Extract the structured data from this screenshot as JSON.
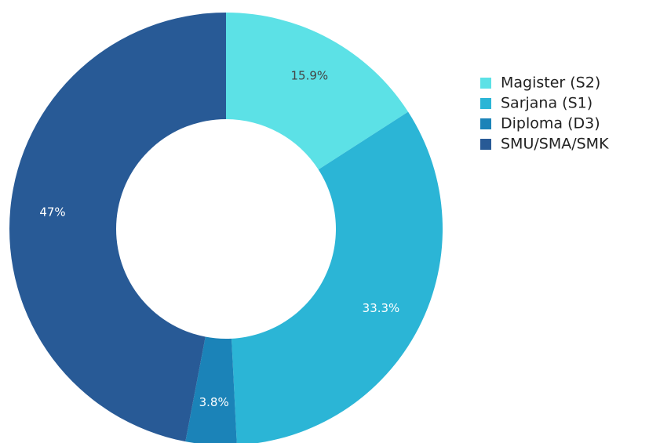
{
  "chart_data": {
    "type": "donut",
    "categories": [
      "Magister (S2)",
      "Sarjana (S1)",
      "Diploma (D3)",
      "SMU/SMA/SMK"
    ],
    "values": [
      15.9,
      33.3,
      3.8,
      47
    ],
    "value_labels": [
      "15.9%",
      "33.3%",
      "3.8%",
      "47%"
    ],
    "colors": [
      "#5ce1e6",
      "#2bb5d6",
      "#1b83b8",
      "#285a96"
    ],
    "legend": "right"
  }
}
